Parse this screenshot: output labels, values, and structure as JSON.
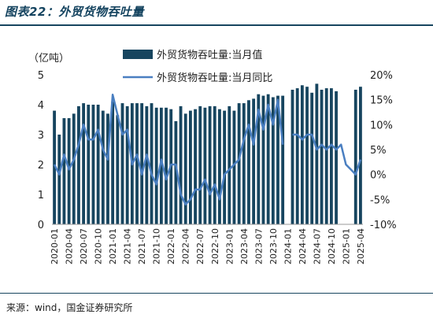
{
  "figure": {
    "title": "图表22：外贸货物吞吐量",
    "source": "来源：wind，国金证券研究所"
  },
  "chart_data": {
    "type": "bar",
    "left_axis": {
      "unit_label": "（亿吨）",
      "ylim": [
        0,
        5
      ],
      "ticks": [
        "0",
        "1",
        "2",
        "3",
        "4",
        "5"
      ]
    },
    "right_axis": {
      "ylim": [
        -10,
        20
      ],
      "ticks": [
        "-10%",
        "-5%",
        "0%",
        "5%",
        "10%",
        "15%",
        "20%"
      ]
    },
    "x_tick_labels": [
      "2020-01",
      "2020-04",
      "2020-07",
      "2020-10",
      "2021-01",
      "2021-04",
      "2021-07",
      "2021-10",
      "2022-01",
      "2022-04",
      "2022-07",
      "2022-10",
      "2023-01",
      "2023-04",
      "2023-07",
      "2023-10",
      "2024-01",
      "2024-04",
      "2024-07",
      "2024-10",
      "2025-01",
      "2025-04"
    ],
    "x": [
      "2020-01",
      "2020-02",
      "2020-03",
      "2020-04",
      "2020-05",
      "2020-06",
      "2020-07",
      "2020-08",
      "2020-09",
      "2020-10",
      "2020-11",
      "2020-12",
      "2021-01",
      "2021-02",
      "2021-03",
      "2021-04",
      "2021-05",
      "2021-06",
      "2021-07",
      "2021-08",
      "2021-09",
      "2021-10",
      "2021-11",
      "2021-12",
      "2022-01",
      "2022-02",
      "2022-03",
      "2022-04",
      "2022-05",
      "2022-06",
      "2022-07",
      "2022-08",
      "2022-09",
      "2022-10",
      "2022-11",
      "2022-12",
      "2023-01",
      "2023-02",
      "2023-03",
      "2023-04",
      "2023-05",
      "2023-06",
      "2023-07",
      "2023-08",
      "2023-09",
      "2023-10",
      "2023-11",
      "2023-12",
      "2024-01",
      "2024-02",
      "2024-03",
      "2024-04",
      "2024-05",
      "2024-06",
      "2024-07",
      "2024-08",
      "2024-09",
      "2024-10",
      "2024-11",
      "2024-12",
      "2025-01",
      "2025-02",
      "2025-03",
      "2025-04"
    ],
    "series": [
      {
        "name": "外贸货物吞吐量:当月值",
        "kind": "bar",
        "axis": "left",
        "color": "#17455f",
        "values": [
          3.8,
          3.0,
          3.55,
          3.55,
          3.7,
          3.95,
          4.05,
          4.0,
          4.0,
          4.0,
          3.8,
          3.7,
          4.1,
          3.65,
          4.05,
          3.95,
          4.05,
          4.05,
          4.05,
          3.95,
          4.05,
          3.9,
          3.9,
          3.9,
          3.85,
          3.45,
          3.95,
          3.7,
          3.8,
          3.85,
          3.95,
          3.9,
          3.95,
          3.95,
          3.85,
          3.8,
          3.95,
          3.8,
          4.05,
          4.05,
          4.15,
          4.2,
          4.35,
          4.3,
          4.35,
          4.25,
          4.3,
          4.3,
          null,
          4.5,
          4.55,
          4.65,
          4.6,
          4.4,
          4.7,
          4.5,
          4.55,
          4.55,
          4.45,
          null,
          null,
          null,
          4.5,
          4.6
        ]
      },
      {
        "name": "外贸货物吞吐量:当月同比",
        "kind": "line",
        "axis": "right",
        "color": "#4a7fc1",
        "values": [
          2,
          0,
          4,
          1,
          3,
          6,
          10,
          7,
          7,
          9,
          5,
          3,
          16,
          12,
          8,
          9,
          2,
          4,
          0,
          4,
          0,
          -2,
          3,
          -1,
          2,
          2,
          -4,
          -6,
          -5,
          -3,
          -3,
          -1,
          -4,
          -2,
          -5,
          0,
          1,
          2,
          3,
          7,
          10,
          6,
          13,
          9,
          14,
          10,
          15,
          6,
          null,
          8,
          8,
          7,
          8,
          8,
          5,
          6,
          5,
          6,
          5,
          6,
          2,
          1,
          0,
          3
        ]
      }
    ],
    "legend_position": "top-right",
    "grid": false
  }
}
